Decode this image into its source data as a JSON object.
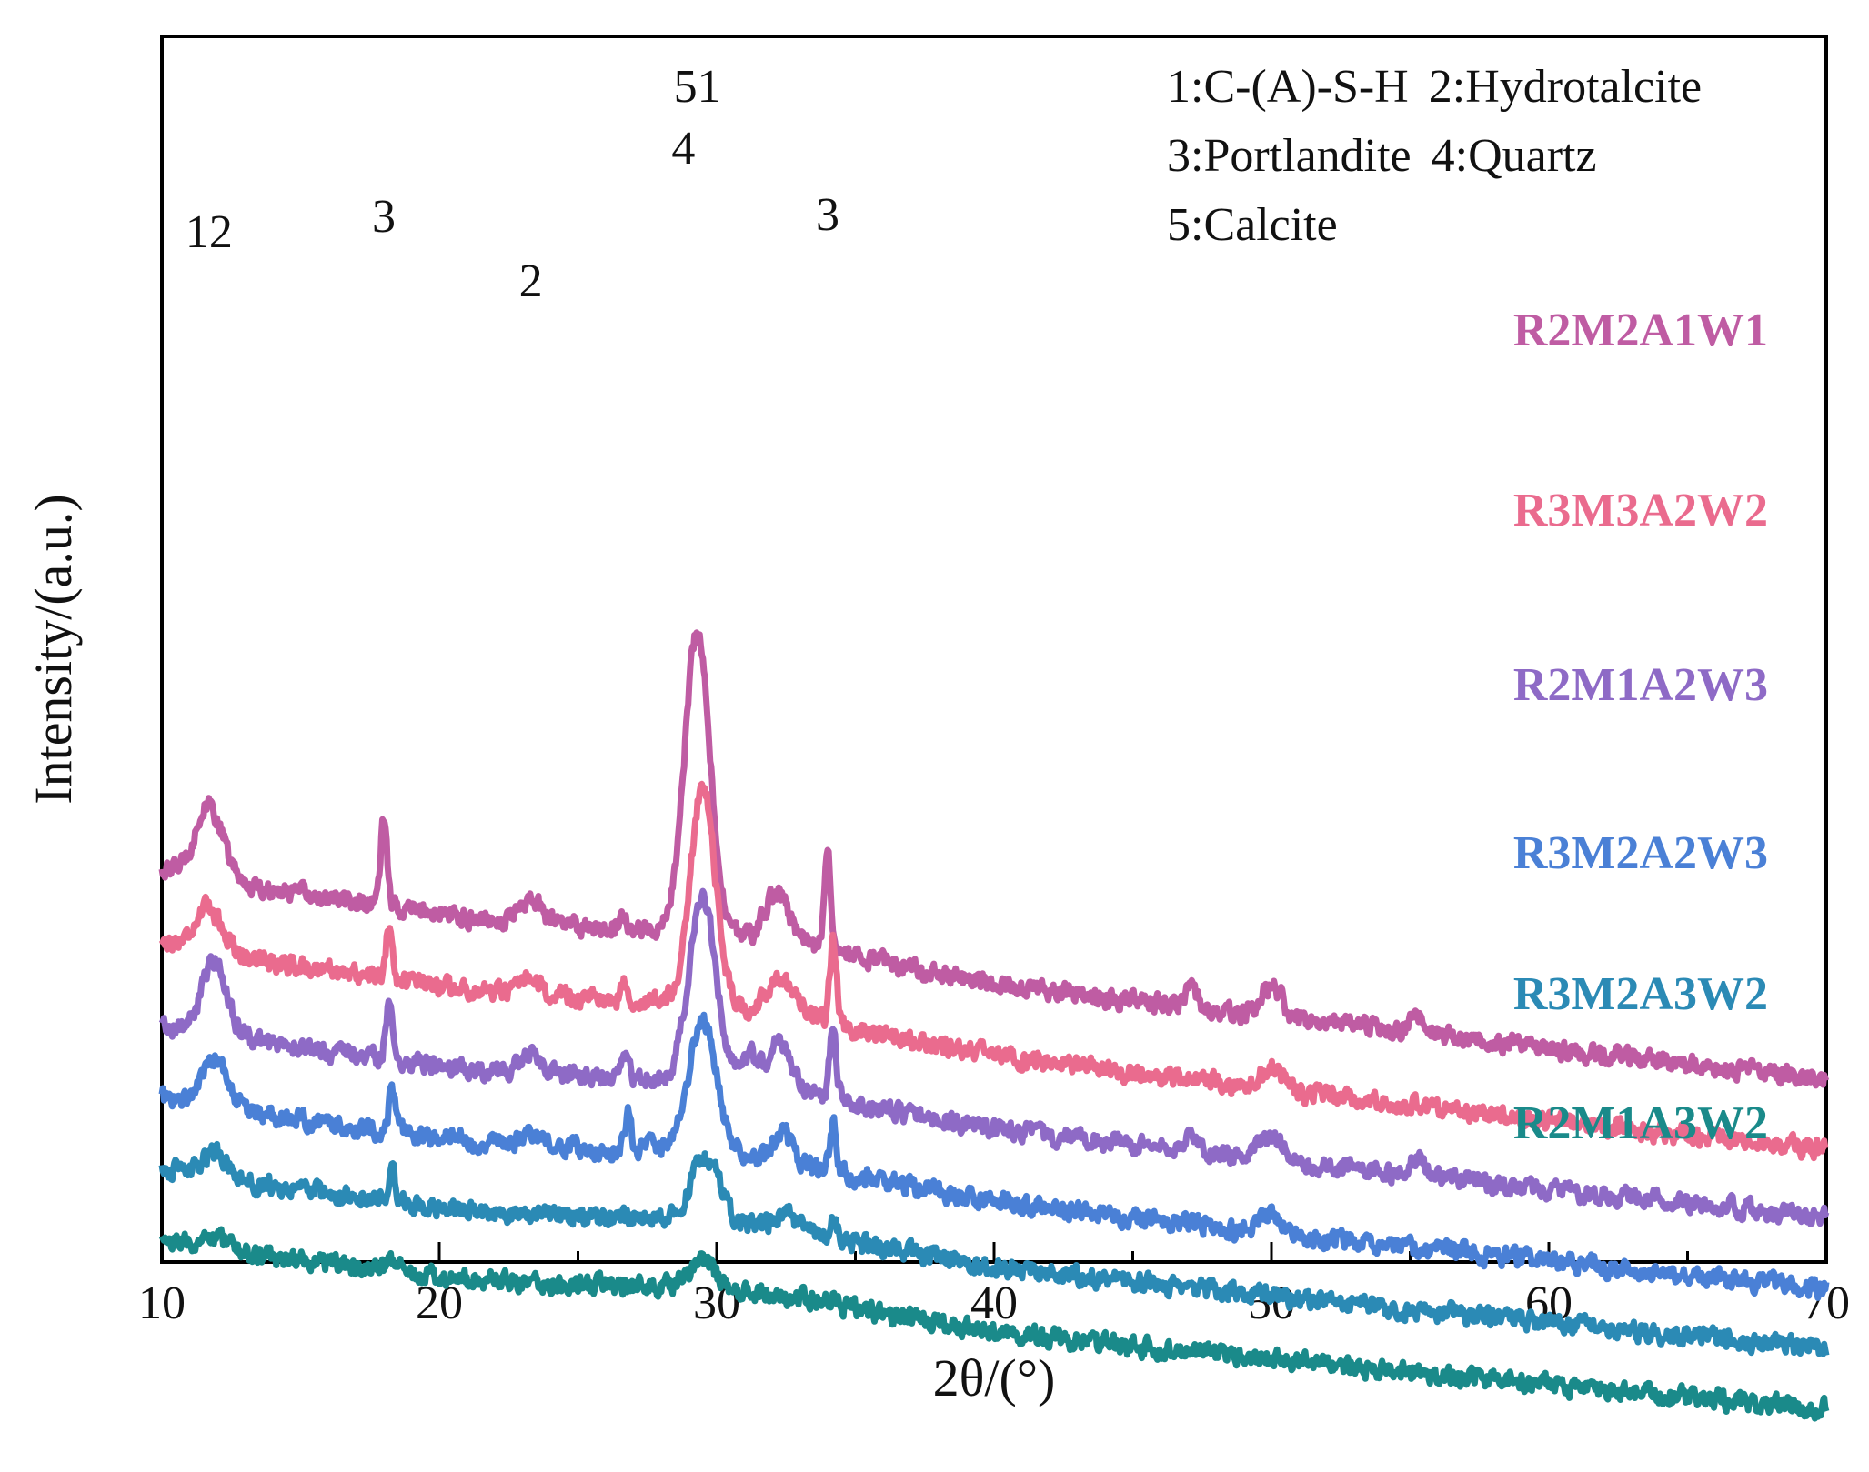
{
  "chart_data": {
    "type": "line",
    "xlabel": "2θ/(°)",
    "ylabel": "Intensity/(a.u.)",
    "xlim": [
      10,
      70
    ],
    "xticks": [
      "10",
      "20",
      "30",
      "40",
      "50",
      "60",
      "70"
    ],
    "grid": false,
    "legend": {
      "placement": "top-right",
      "lines": [
        [
          "1:C-(A)-S-H",
          "2:Hydrotalcite"
        ],
        [
          "3:Portlandite",
          "4:Quartz"
        ],
        [
          "5:Calcite"
        ]
      ]
    },
    "peak_labels": [
      {
        "text": "12",
        "x": 11.7
      },
      {
        "text": "3",
        "x": 18.0
      },
      {
        "text": "2",
        "x": 23.3
      },
      {
        "text": "51",
        "x": 29.3
      },
      {
        "text": "4",
        "x": 28.8
      },
      {
        "text": "3",
        "x": 34.0
      }
    ],
    "series": [
      {
        "name": "R2M2A1W1",
        "color": "#bf5ca3",
        "baseline_start": 58,
        "baseline_end": 23,
        "peaks": [
          {
            "x": 11.7,
            "h": 12,
            "w": 0.5
          },
          {
            "x": 18.0,
            "h": 14,
            "w": 0.12
          },
          {
            "x": 23.3,
            "h": 4,
            "w": 0.4
          },
          {
            "x": 26.6,
            "h": 3,
            "w": 0.12
          },
          {
            "x": 29.3,
            "h": 50,
            "w": 0.45
          },
          {
            "x": 32.2,
            "h": 8,
            "w": 0.45
          },
          {
            "x": 34.0,
            "h": 16,
            "w": 0.12
          },
          {
            "x": 47.1,
            "h": 4,
            "w": 0.2
          },
          {
            "x": 50.0,
            "h": 5,
            "w": 0.4
          },
          {
            "x": 55.2,
            "h": 3,
            "w": 0.3
          }
        ]
      },
      {
        "name": "R3M3A2W2",
        "color": "#ea6b8e",
        "baseline_start": 46,
        "baseline_end": 11,
        "peaks": [
          {
            "x": 11.7,
            "h": 7,
            "w": 0.5
          },
          {
            "x": 18.2,
            "h": 9,
            "w": 0.12
          },
          {
            "x": 23.3,
            "h": 2,
            "w": 0.4
          },
          {
            "x": 26.7,
            "h": 3,
            "w": 0.12
          },
          {
            "x": 29.5,
            "h": 36,
            "w": 0.45
          },
          {
            "x": 32.3,
            "h": 6,
            "w": 0.45
          },
          {
            "x": 34.2,
            "h": 14,
            "w": 0.12
          },
          {
            "x": 50.0,
            "h": 4,
            "w": 0.4
          }
        ]
      },
      {
        "name": "R2M1A2W3",
        "color": "#8e6ac6",
        "baseline_start": 32,
        "baseline_end": 0,
        "peaks": [
          {
            "x": 11.9,
            "h": 12,
            "w": 0.45
          },
          {
            "x": 18.2,
            "h": 10,
            "w": 0.12
          },
          {
            "x": 23.3,
            "h": 3,
            "w": 0.4
          },
          {
            "x": 26.7,
            "h": 4,
            "w": 0.12
          },
          {
            "x": 29.5,
            "h": 30,
            "w": 0.5
          },
          {
            "x": 31.2,
            "h": 5,
            "w": 0.3
          },
          {
            "x": 32.3,
            "h": 8,
            "w": 0.4
          },
          {
            "x": 34.2,
            "h": 12,
            "w": 0.12
          },
          {
            "x": 47.1,
            "h": 4,
            "w": 0.2
          },
          {
            "x": 50.0,
            "h": 4,
            "w": 0.4
          },
          {
            "x": 55.2,
            "h": 3,
            "w": 0.3
          }
        ]
      },
      {
        "name": "R3M2A2W3",
        "color": "#4a80d6",
        "baseline_start": 20,
        "baseline_end": -12,
        "peaks": [
          {
            "x": 11.9,
            "h": 8,
            "w": 0.45
          },
          {
            "x": 18.3,
            "h": 7,
            "w": 0.12
          },
          {
            "x": 23.4,
            "h": 2,
            "w": 0.4
          },
          {
            "x": 26.8,
            "h": 6,
            "w": 0.12
          },
          {
            "x": 27.6,
            "h": 3,
            "w": 0.1
          },
          {
            "x": 29.5,
            "h": 22,
            "w": 0.5
          },
          {
            "x": 32.4,
            "h": 5,
            "w": 0.3
          },
          {
            "x": 34.2,
            "h": 8,
            "w": 0.12
          },
          {
            "x": 50.0,
            "h": 3,
            "w": 0.4
          }
        ]
      },
      {
        "name": "R3M2A3W2",
        "color": "#2b8ab5",
        "baseline_start": 8,
        "baseline_end": -22,
        "peaks": [
          {
            "x": 11.9,
            "h": 4,
            "w": 0.45
          },
          {
            "x": 18.3,
            "h": 5,
            "w": 0.12
          },
          {
            "x": 29.6,
            "h": 11,
            "w": 0.5
          },
          {
            "x": 32.5,
            "h": 3,
            "w": 0.3
          },
          {
            "x": 34.2,
            "h": 3,
            "w": 0.12
          }
        ]
      },
      {
        "name": "R2M1A3W2",
        "color": "#1a8a8a",
        "baseline_start": -4,
        "baseline_end": -32,
        "peaks": [
          {
            "x": 11.9,
            "h": 2,
            "w": 0.5
          },
          {
            "x": 18.3,
            "h": 2,
            "w": 0.2
          },
          {
            "x": 29.5,
            "h": 4,
            "w": 0.5
          },
          {
            "x": 34.3,
            "h": 1,
            "w": 0.15
          }
        ]
      }
    ]
  }
}
